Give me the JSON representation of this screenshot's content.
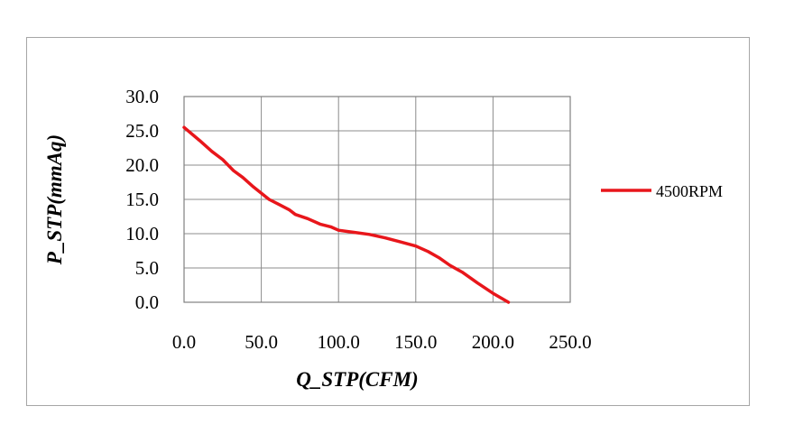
{
  "chart_data": {
    "type": "line",
    "title": "",
    "xlabel": "Q_STP(CFM)",
    "ylabel": "P_STP(mmAq)",
    "xlim": [
      0,
      250
    ],
    "ylim": [
      0,
      30
    ],
    "x_ticks": [
      "0.0",
      "50.0",
      "100.0",
      "150.0",
      "200.0",
      "250.0"
    ],
    "y_ticks": [
      "0.0",
      "5.0",
      "10.0",
      "15.0",
      "20.0",
      "25.0",
      "30.0"
    ],
    "grid": true,
    "legend_position": "right",
    "series": [
      {
        "name": "4500RPM",
        "color": "#e8161b",
        "points": [
          [
            0,
            25.5
          ],
          [
            10,
            23.6
          ],
          [
            18,
            22.0
          ],
          [
            25,
            20.8
          ],
          [
            32,
            19.2
          ],
          [
            38,
            18.2
          ],
          [
            45,
            16.8
          ],
          [
            55,
            15.0
          ],
          [
            62,
            14.2
          ],
          [
            68,
            13.5
          ],
          [
            72,
            12.8
          ],
          [
            80,
            12.2
          ],
          [
            88,
            11.4
          ],
          [
            95,
            11.0
          ],
          [
            100,
            10.5
          ],
          [
            110,
            10.2
          ],
          [
            120,
            9.9
          ],
          [
            130,
            9.4
          ],
          [
            140,
            8.8
          ],
          [
            150,
            8.2
          ],
          [
            158,
            7.4
          ],
          [
            165,
            6.5
          ],
          [
            172,
            5.4
          ],
          [
            180,
            4.4
          ],
          [
            190,
            2.8
          ],
          [
            200,
            1.3
          ],
          [
            210,
            0.0
          ]
        ]
      }
    ]
  }
}
